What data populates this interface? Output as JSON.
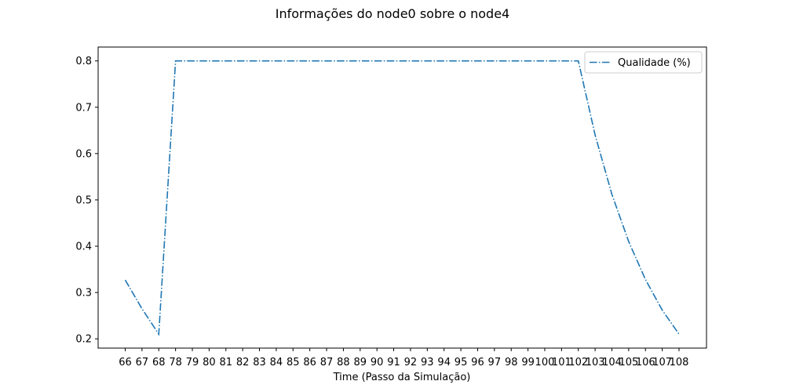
{
  "chart_data": {
    "type": "line",
    "title": "Informações do node0 sobre o node4",
    "xlabel": "Time (Passo da Simulação)",
    "ylabel": "",
    "categories": [
      "66",
      "67",
      "68",
      "78",
      "79",
      "80",
      "81",
      "82",
      "83",
      "84",
      "85",
      "86",
      "87",
      "88",
      "89",
      "90",
      "91",
      "92",
      "93",
      "94",
      "95",
      "96",
      "97",
      "98",
      "99",
      "100",
      "101",
      "102",
      "103",
      "104",
      "105",
      "106",
      "107",
      "108"
    ],
    "series": [
      {
        "name": "Qualidade (%)",
        "color": "#1f77b4",
        "line_style": "dash-dot",
        "values": [
          0.327,
          0.265,
          0.21,
          0.8,
          0.8,
          0.8,
          0.8,
          0.8,
          0.8,
          0.8,
          0.8,
          0.8,
          0.8,
          0.8,
          0.8,
          0.8,
          0.8,
          0.8,
          0.8,
          0.8,
          0.8,
          0.8,
          0.8,
          0.8,
          0.8,
          0.8,
          0.8,
          0.8,
          0.64,
          0.512,
          0.41,
          0.328,
          0.262,
          0.21
        ]
      }
    ],
    "ylim": [
      0.18,
      0.83
    ],
    "yticks": [
      0.2,
      0.3,
      0.4,
      0.5,
      0.6,
      0.7,
      0.8
    ],
    "ytick_labels": [
      "0.2",
      "0.3",
      "0.4",
      "0.5",
      "0.6",
      "0.7",
      "0.8"
    ],
    "grid": false,
    "legend_position": "top-right"
  }
}
